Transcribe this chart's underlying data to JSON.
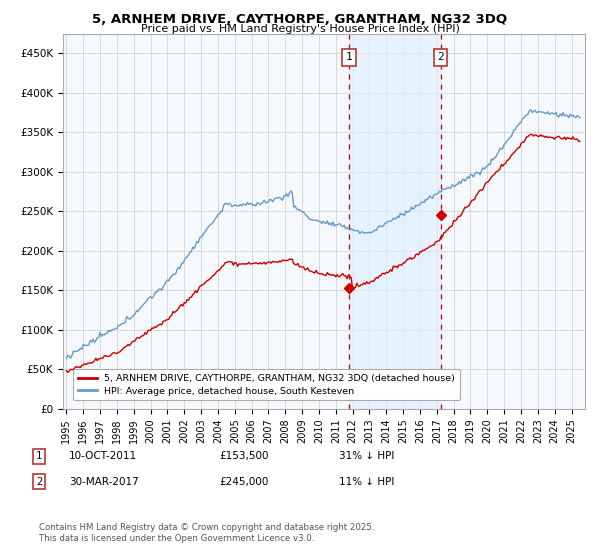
{
  "title": "5, ARNHEM DRIVE, CAYTHORPE, GRANTHAM, NG32 3DQ",
  "subtitle": "Price paid vs. HM Land Registry's House Price Index (HPI)",
  "legend_line1": "5, ARNHEM DRIVE, CAYTHORPE, GRANTHAM, NG32 3DQ (detached house)",
  "legend_line2": "HPI: Average price, detached house, South Kesteven",
  "footnote": "Contains HM Land Registry data © Crown copyright and database right 2025.\nThis data is licensed under the Open Government Licence v3.0.",
  "annotation1_date": "10-OCT-2011",
  "annotation1_price": "£153,500",
  "annotation1_hpi": "31% ↓ HPI",
  "annotation2_date": "30-MAR-2017",
  "annotation2_price": "£245,000",
  "annotation2_hpi": "11% ↓ HPI",
  "sale1_year": 2011.78,
  "sale1_price": 153500,
  "sale2_year": 2017.23,
  "sale2_price": 245000,
  "red_color": "#cc0000",
  "blue_color": "#6699cc",
  "fill_color": "#ddeeff",
  "plot_bg_color": "#f5f8fc",
  "ylim": [
    0,
    475000
  ],
  "xlim": [
    1994.8,
    2025.8
  ]
}
